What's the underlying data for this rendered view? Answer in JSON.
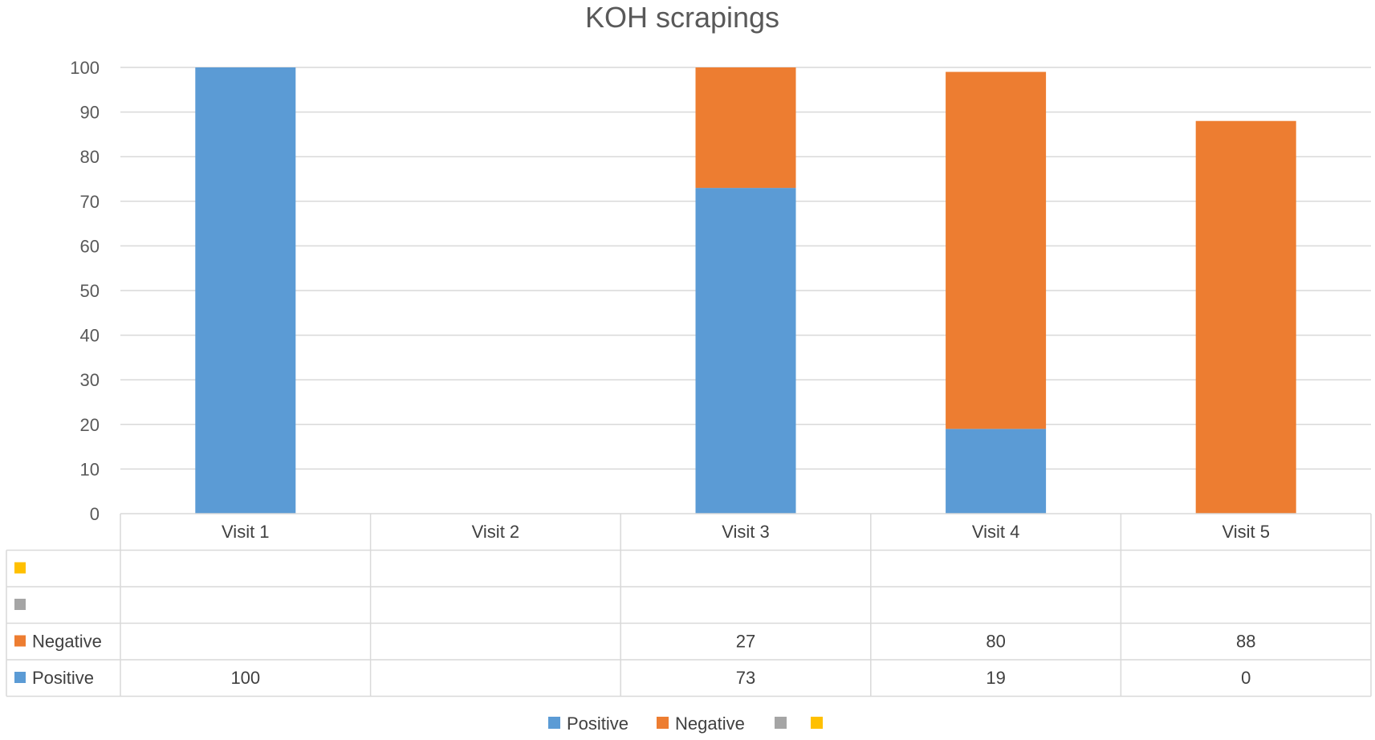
{
  "chart_data": {
    "type": "bar",
    "stacked": true,
    "title": "KOH scrapings",
    "categories": [
      "Visit 1",
      "Visit 2",
      "Visit 3",
      "Visit 4",
      "Visit 5"
    ],
    "ylim": [
      0,
      100
    ],
    "yticks": [
      0,
      10,
      20,
      30,
      40,
      50,
      60,
      70,
      80,
      90,
      100
    ],
    "grid": true,
    "data_table": true,
    "legend_position": "bottom",
    "series": [
      {
        "name": "Positive",
        "color": "#5B9BD5",
        "values": [
          100,
          null,
          73,
          19,
          0
        ]
      },
      {
        "name": "Negative",
        "color": "#ED7D31",
        "values": [
          null,
          null,
          27,
          80,
          88
        ]
      },
      {
        "name": "",
        "color": "#A5A5A5",
        "values": [
          null,
          null,
          null,
          null,
          null
        ]
      },
      {
        "name": "",
        "color": "#FFC000",
        "values": [
          null,
          null,
          null,
          null,
          null
        ]
      }
    ]
  }
}
